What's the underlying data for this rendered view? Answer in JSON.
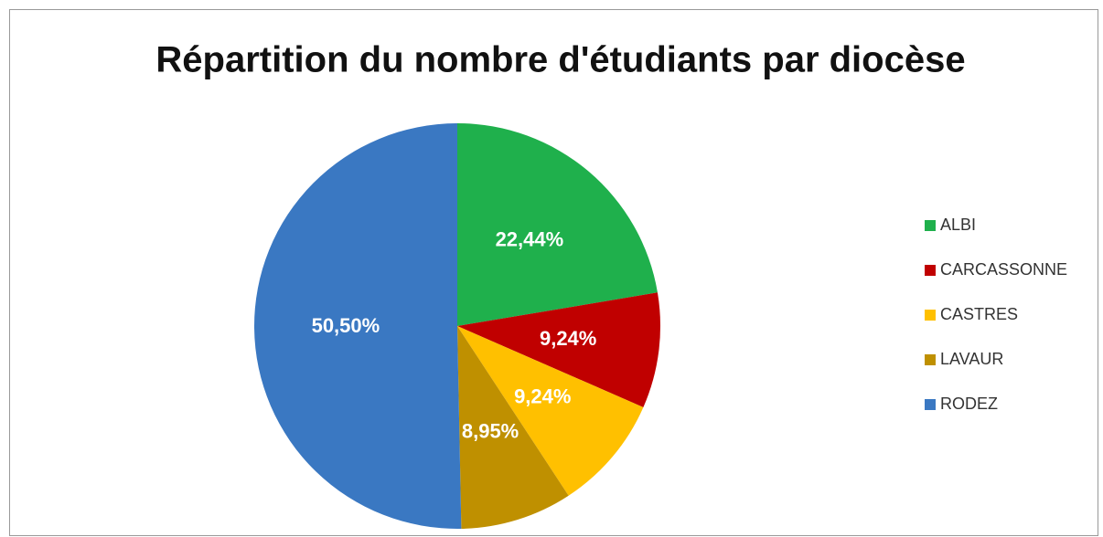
{
  "chart_data": {
    "type": "pie",
    "title": "Répartition du nombre d'étudiants par diocèse",
    "categories": [
      "ALBI",
      "CARCASSONNE",
      "CASTRES",
      "LAVAUR",
      "RODEZ"
    ],
    "values": [
      22.44,
      9.24,
      9.24,
      8.95,
      50.5
    ],
    "value_labels": [
      "22,44%",
      "9,24%",
      "9,24%",
      "8,95%",
      "50,50%"
    ],
    "colors": [
      "#1fb04c",
      "#c00000",
      "#ffc000",
      "#bf9000",
      "#3a78c2"
    ],
    "legend": "right"
  }
}
